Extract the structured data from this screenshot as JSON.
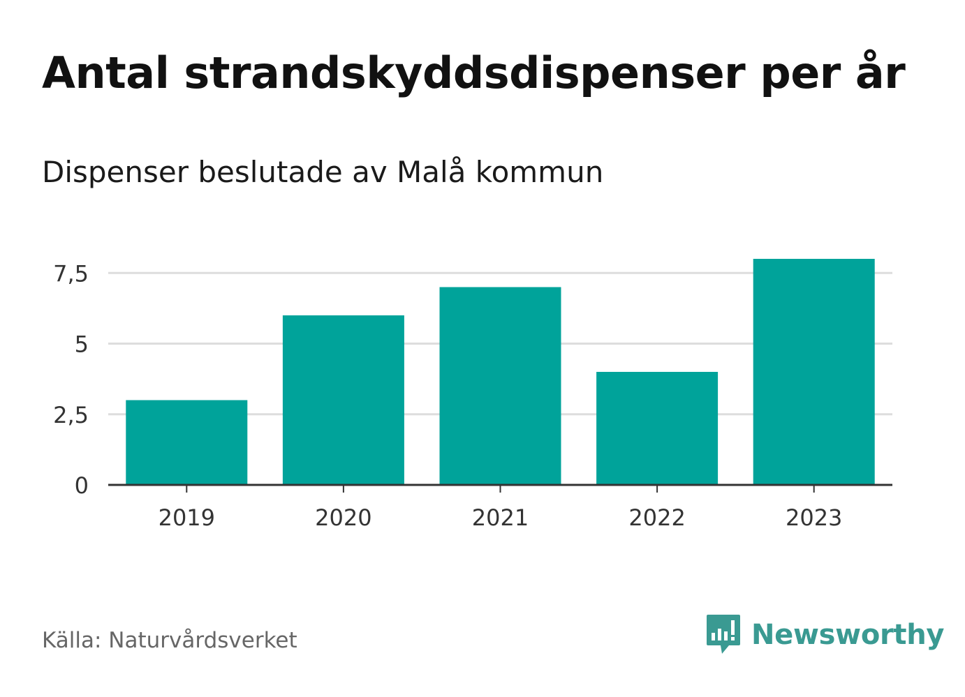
{
  "chart_data": {
    "type": "bar",
    "title": "Antal strandskyddsdispenser per år",
    "subtitle": "Dispenser beslutade av Malå kommun",
    "categories": [
      "2019",
      "2020",
      "2021",
      "2022",
      "2023"
    ],
    "values": [
      3,
      6,
      7,
      4,
      8
    ],
    "xlabel": "",
    "ylabel": "",
    "ylim": [
      0,
      8
    ],
    "yticks": [
      0,
      2.5,
      5,
      7.5
    ],
    "ytick_labels": [
      "0",
      "2,5",
      "5",
      "7,5"
    ],
    "grid": true,
    "legend": "none"
  },
  "colors": {
    "bar": "#00a39a",
    "grid": "#dddddd",
    "axis": "#333333"
  },
  "footer": {
    "source": "Källa: Naturvårdsverket",
    "brand": "Newsworthy",
    "brand_icon": "newsworthy-logo-icon"
  }
}
